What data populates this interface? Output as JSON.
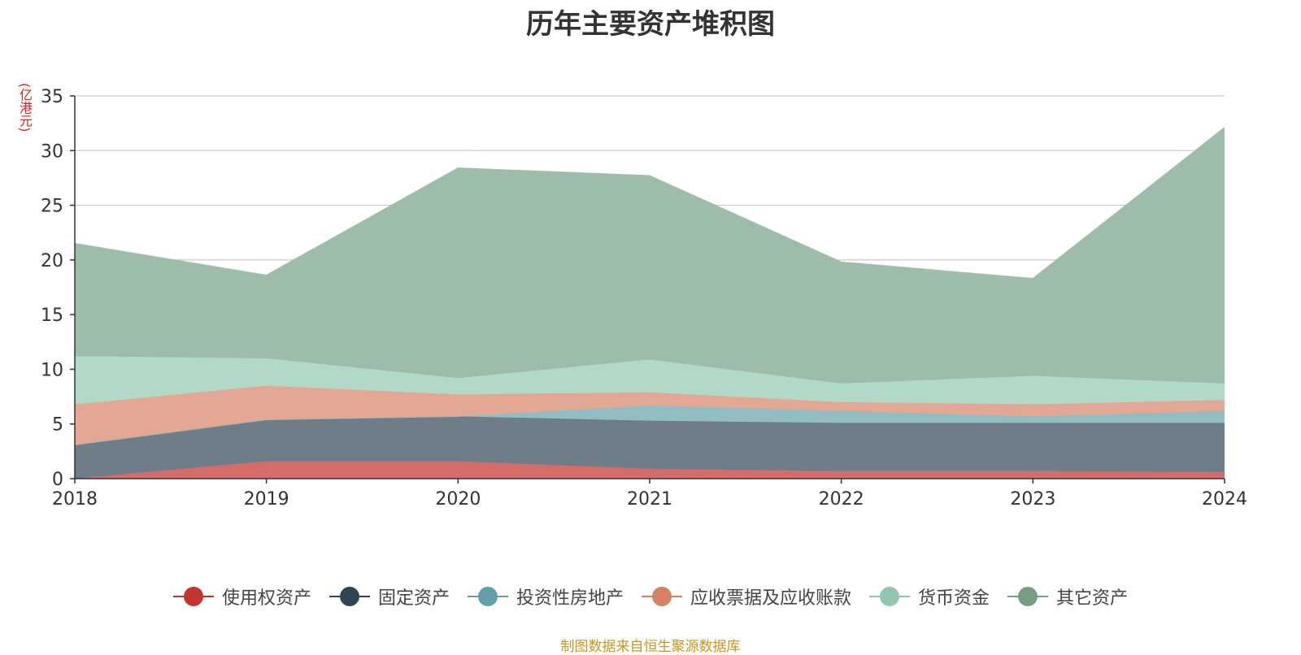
{
  "chart_data": {
    "type": "area",
    "stacked": true,
    "title": "历年主要资产堆积图",
    "ylabel": "(亿港元)",
    "ylim": [
      0,
      35
    ],
    "yticks": [
      0,
      5,
      10,
      15,
      20,
      25,
      30,
      35
    ],
    "grid": true,
    "legend_position": "bottom",
    "x": [
      "2018",
      "2019",
      "2020",
      "2021",
      "2022",
      "2023",
      "2024"
    ],
    "series": [
      {
        "name": "使用权资产",
        "color": "#c23531",
        "fill": "#d46c6a",
        "values": [
          0.0,
          1.6,
          1.6,
          0.9,
          0.7,
          0.7,
          0.6
        ]
      },
      {
        "name": "固定资产",
        "color": "#2f4554",
        "fill": "#6f7d88",
        "values": [
          3.1,
          3.8,
          4.1,
          4.4,
          4.4,
          4.4,
          4.5
        ]
      },
      {
        "name": "投资性房地产",
        "color": "#61a0a8",
        "fill": "#91bdc3",
        "values": [
          0.0,
          0.0,
          0.0,
          1.4,
          1.1,
          0.6,
          1.1
        ]
      },
      {
        "name": "应收票据及应收账款",
        "color": "#d48265",
        "fill": "#e2a894",
        "values": [
          3.7,
          3.1,
          2.0,
          1.2,
          0.8,
          1.1,
          1.0
        ]
      },
      {
        "name": "货币资金",
        "color": "#91c7ae",
        "fill": "#b2d8c7",
        "values": [
          4.4,
          2.5,
          1.5,
          3.0,
          1.7,
          2.6,
          1.5
        ]
      },
      {
        "name": "其它资产",
        "color": "#749f83",
        "fill": "#9ebcaa",
        "values": [
          10.3,
          7.6,
          19.2,
          16.8,
          11.1,
          8.9,
          23.4
        ]
      }
    ]
  },
  "source_text": "制图数据来自恒生聚源数据库"
}
